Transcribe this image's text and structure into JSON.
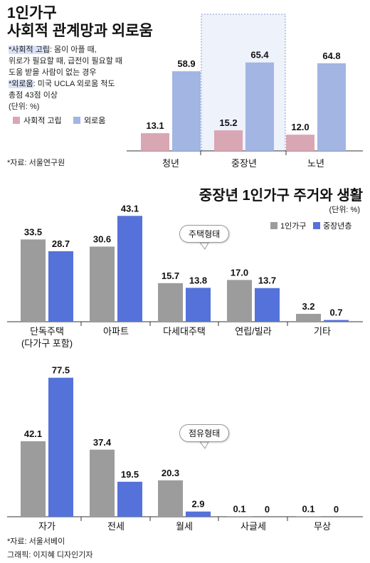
{
  "header": {
    "title_line1": "1인가구",
    "title_line2": "사회적 관계망과 외로움",
    "note1_key": "*사회적 고립",
    "note1_text": ": 몸이 아플 때,",
    "note1_line2": "위로가 필요할 때, 급전이 필요할 때",
    "note1_line3": "도움 받을 사람이 없는 경우",
    "note2_key": "*외로움",
    "note2_text": ": 미국 UCLA 외로움 척도",
    "note2_line2": "총점 43점 이상",
    "unit": "(단위: %)",
    "source": "*자료: 서울연구원"
  },
  "section2": {
    "title": "중장년 1인가구 주거와 생활",
    "unit": "(단위: %)"
  },
  "footer": {
    "source": "*자료: 서울서베이",
    "credit": "그래픽: 이지혜 디자인기자"
  },
  "colors": {
    "pink": "#d9a6b4",
    "light_blue": "#a2b5e3",
    "gray": "#9c9c9c",
    "blue": "#5472d9",
    "highlight_bg": "#eef2fb"
  },
  "chart_data": [
    {
      "type": "bar",
      "title": "",
      "categories": [
        "청년",
        "중장년",
        "노년"
      ],
      "series": [
        {
          "name": "사회적 고립",
          "values": [
            13.1,
            15.2,
            12.0
          ]
        },
        {
          "name": "외로움",
          "values": [
            58.9,
            65.4,
            64.8
          ]
        }
      ],
      "value_labels": [
        [
          "13.1",
          "15.2",
          "12.0"
        ],
        [
          "58.9",
          "65.4",
          "64.8"
        ]
      ],
      "highlight_category": "중장년",
      "legend": "left"
    },
    {
      "type": "bar",
      "annotation": "주택형태",
      "categories": [
        "단독주택\n(다가구 포함)",
        "아파트",
        "다세대주택",
        "연립/빌라",
        "기타"
      ],
      "series": [
        {
          "name": "1인가구",
          "values": [
            33.5,
            30.6,
            15.7,
            17.0,
            3.2
          ]
        },
        {
          "name": "중장년층",
          "values": [
            28.7,
            43.1,
            13.8,
            13.7,
            0.7
          ]
        }
      ],
      "value_labels": [
        [
          "33.5",
          "30.6",
          "15.7",
          "17.0",
          "3.2"
        ],
        [
          "28.7",
          "43.1",
          "13.8",
          "13.7",
          "0.7"
        ]
      ],
      "legend": "top-right"
    },
    {
      "type": "bar",
      "annotation": "점유형태",
      "categories": [
        "자가",
        "전세",
        "월세",
        "사글세",
        "무상"
      ],
      "series": [
        {
          "name": "1인가구",
          "values": [
            42.1,
            37.4,
            20.3,
            0.1,
            0.1
          ]
        },
        {
          "name": "중장년층",
          "values": [
            77.5,
            19.5,
            2.9,
            0,
            0
          ]
        }
      ],
      "value_labels": [
        [
          "42.1",
          "37.4",
          "20.3",
          "0.1",
          "0.1"
        ],
        [
          "77.5",
          "19.5",
          "2.9",
          "0",
          "0"
        ]
      ]
    }
  ]
}
